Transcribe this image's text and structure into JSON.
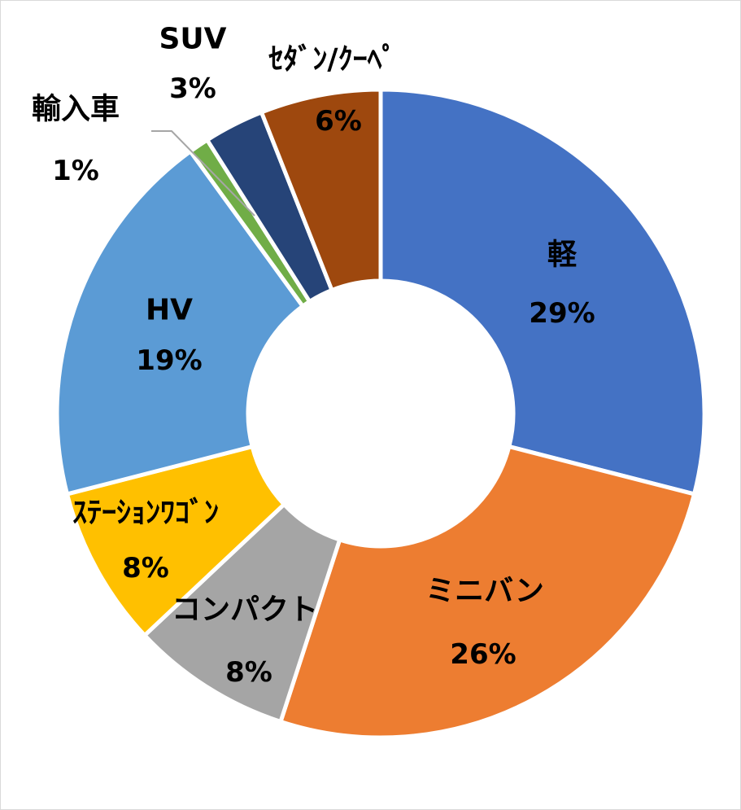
{
  "chart_data": {
    "type": "pie",
    "variant": "donut",
    "title": "",
    "legend": "none",
    "slices": [
      {
        "label": "軽",
        "value": 29,
        "display": "29%",
        "color": "#4472C4"
      },
      {
        "label": "ミニバン",
        "value": 26,
        "display": "26%",
        "color": "#ED7D31"
      },
      {
        "label": "コンパクト",
        "value": 8,
        "display": "8%",
        "color": "#A5A5A5"
      },
      {
        "label": "ｽﾃｰｼｮﾝﾜｺﾞﾝ",
        "value": 8,
        "display": "8%",
        "color": "#FFC000"
      },
      {
        "label": "HV",
        "value": 19,
        "display": "19%",
        "color": "#5B9BD5"
      },
      {
        "label": "輸入車",
        "value": 1,
        "display": "1%",
        "color": "#70AD47"
      },
      {
        "label": "SUV",
        "value": 3,
        "display": "3%",
        "color": "#264478"
      },
      {
        "label": "ｾﾀﾞﾝ/ｸｰﾍﾟ",
        "value": 6,
        "display": "6%",
        "color": "#9E480E"
      }
    ]
  }
}
